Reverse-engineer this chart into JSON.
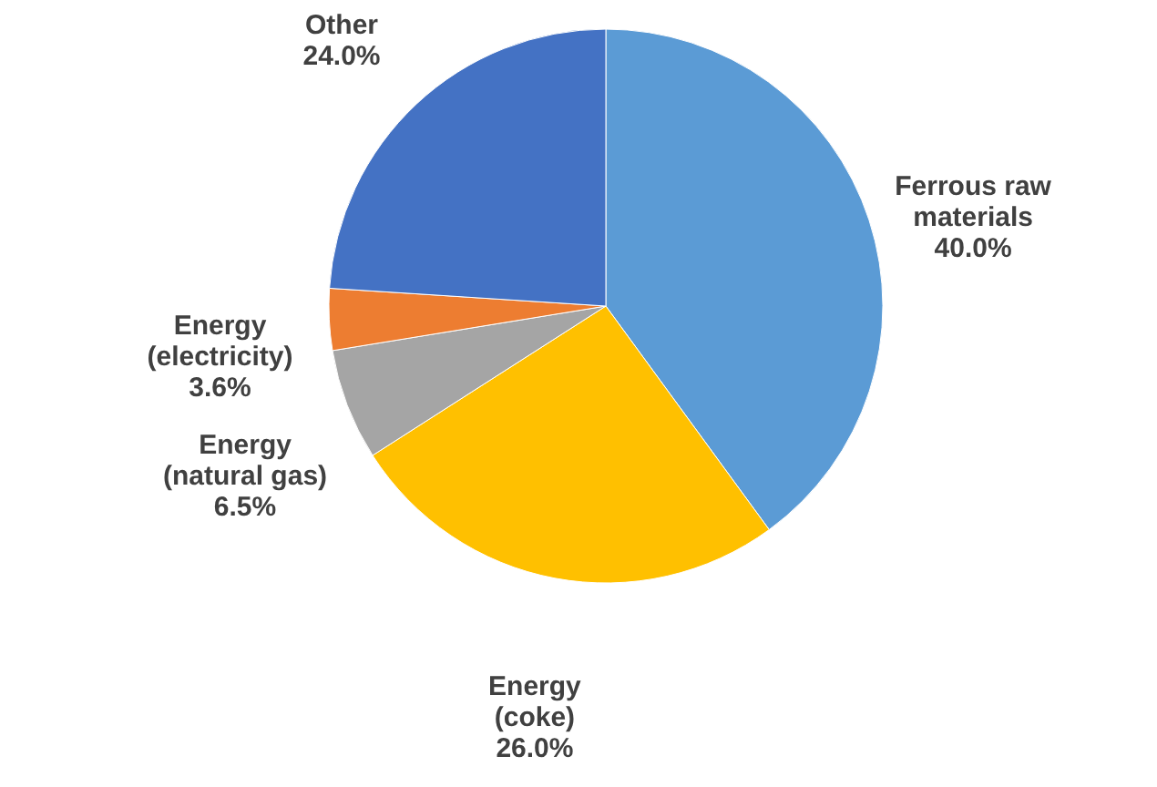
{
  "chart_data": {
    "type": "pie",
    "categories": [
      "Ferrous raw materials",
      "Energy (coke)",
      "Energy (natural gas)",
      "Energy (electricity)",
      "Other"
    ],
    "values": [
      40.0,
      26.0,
      6.5,
      3.6,
      24.0
    ],
    "value_labels": [
      "40.0%",
      "26.0%",
      "6.5%",
      "3.6%",
      "24.0%"
    ],
    "colors": [
      "#5b9bd5",
      "#ffc000",
      "#a5a5a5",
      "#ed7d31",
      "#4472c4"
    ]
  }
}
